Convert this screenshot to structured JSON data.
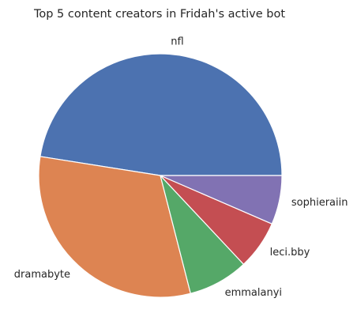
{
  "chart_data": {
    "type": "pie",
    "title": "Top 5 content creators in Fridah's active bot",
    "start_angle_deg": 0,
    "direction": "counterclockwise",
    "slices": [
      {
        "label": "nfl",
        "value": 47.5,
        "color": "#4c72b0"
      },
      {
        "label": "dramabyte",
        "value": 31.5,
        "color": "#dd8452"
      },
      {
        "label": "emmalanyi",
        "value": 8.0,
        "color": "#55a868"
      },
      {
        "label": "leci.bby",
        "value": 6.5,
        "color": "#c44e52"
      },
      {
        "label": "sophieraiin",
        "value": 6.5,
        "color": "#8172b3"
      }
    ]
  }
}
